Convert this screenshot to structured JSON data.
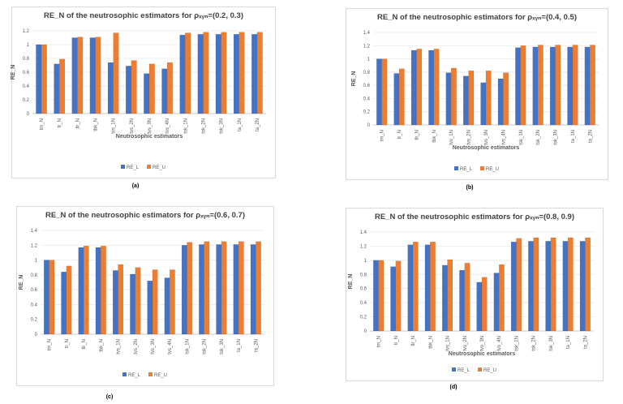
{
  "colors": {
    "lower": "#4472C4",
    "upper": "#ED7D31",
    "grid": "#e6e6e6",
    "frame": "#d9d9d9"
  },
  "chart_data": [
    {
      "type": "bar",
      "panel": "a",
      "caption": "(a)",
      "title": "RE_N of the neutrosophic estimators for ρₓᵧₙ=(0.2, 0.3)",
      "xlabel": "Neutrosophic estimators",
      "ylabel": "RE_N",
      "ylim": [
        0,
        1.2
      ],
      "yticks": [
        "0",
        "0.2",
        "0.4",
        "0.6",
        "0.8",
        "1",
        "1.2"
      ],
      "categories": [
        "tm_N",
        "tr_N",
        "tlr_N",
        "tbk_N",
        "tvs_1N",
        "tvs_2N",
        "tvs_3N",
        "tvs_4N",
        "tsk_1N",
        "tsk_2N",
        "tsk_3N",
        "ta_1N",
        "ta_2N"
      ],
      "series": [
        {
          "name": "RE_L",
          "values": [
            1.0,
            0.72,
            1.1,
            1.1,
            0.74,
            0.69,
            0.58,
            0.65,
            1.14,
            1.15,
            1.15,
            1.15,
            1.15
          ]
        },
        {
          "name": "RE_U",
          "values": [
            1.0,
            0.79,
            1.11,
            1.11,
            1.17,
            0.77,
            0.72,
            0.74,
            1.17,
            1.18,
            1.18,
            1.18,
            1.18
          ]
        }
      ]
    },
    {
      "type": "bar",
      "panel": "b",
      "caption": "(b)",
      "title": "RE_N of the neutrosophic estimators for ρₓᵧₙ=(0.4, 0.5)",
      "xlabel": "Neutrosophic estimators",
      "ylabel": "RE_N",
      "ylim": [
        0,
        1.4
      ],
      "yticks": [
        "0",
        "0.2",
        "0.4",
        "0.6",
        "0.8",
        "1",
        "1.2",
        "1.4"
      ],
      "categories": [
        "tm_N",
        "tr_N",
        "tlr_N",
        "tbk_N",
        "tvs_1N",
        "tvs_2N",
        "tvs_3N",
        "tvs_4N",
        "tsk_1N",
        "tsk_2N",
        "tsk_3N",
        "ta_1N",
        "ta_2N"
      ],
      "series": [
        {
          "name": "RE_L",
          "values": [
            1.0,
            0.78,
            1.13,
            1.13,
            0.79,
            0.74,
            0.64,
            0.7,
            1.17,
            1.18,
            1.18,
            1.18,
            1.18
          ]
        },
        {
          "name": "RE_U",
          "values": [
            1.0,
            0.85,
            1.15,
            1.15,
            0.86,
            0.82,
            0.82,
            0.79,
            1.2,
            1.21,
            1.21,
            1.21,
            1.21
          ]
        }
      ]
    },
    {
      "type": "bar",
      "panel": "c",
      "caption": "(c)",
      "title": "RE_N of the neutrosophic estimators for ρₓᵧₙ=(0.6, 0.7)",
      "xlabel": "",
      "ylabel": "RE_N",
      "ylim": [
        0,
        1.4
      ],
      "yticks": [
        "0",
        "0.2",
        "0.4",
        "0.6",
        "0.8",
        "1",
        "1.2",
        "1.4"
      ],
      "categories": [
        "tm_N",
        "tr_N",
        "tlr_N",
        "tbk_N",
        "tvs_1N",
        "tvs_2N",
        "tvs_3N",
        "tvs_4N",
        "tsk_1N",
        "tsk_2N",
        "tsk_3N",
        "ta_1N",
        "ta_2N"
      ],
      "series": [
        {
          "name": "RE_L",
          "values": [
            1.0,
            0.84,
            1.17,
            1.17,
            0.86,
            0.81,
            0.72,
            0.76,
            1.2,
            1.21,
            1.21,
            1.21,
            1.21
          ]
        },
        {
          "name": "RE_U",
          "values": [
            1.0,
            0.92,
            1.19,
            1.19,
            0.94,
            0.9,
            0.87,
            0.87,
            1.24,
            1.25,
            1.25,
            1.25,
            1.25
          ]
        }
      ]
    },
    {
      "type": "bar",
      "panel": "d",
      "caption": "(d)",
      "title": "RE_N of the neutrosophic estimators for ρₓᵧₙ=(0.8, 0.9)",
      "xlabel": "Neutrosophic estimators",
      "ylabel": "RE_N",
      "ylim": [
        0,
        1.4
      ],
      "yticks": [
        "0",
        "0.2",
        "0.4",
        "0.6",
        "0.8",
        "1",
        "1.2",
        "1.4"
      ],
      "categories": [
        "tm_N",
        "tr_N",
        "tlr_N",
        "tbk_N",
        "tvs_1N",
        "tvs_2N",
        "tvs_3N",
        "tvs_4N",
        "tsk_1N",
        "tsk_2N",
        "tsk_3N",
        "ta_1N",
        "ta_2N"
      ],
      "series": [
        {
          "name": "RE_L",
          "values": [
            1.0,
            0.91,
            1.22,
            1.22,
            0.93,
            0.86,
            0.69,
            0.82,
            1.26,
            1.27,
            1.27,
            1.27,
            1.27
          ]
        },
        {
          "name": "RE_U",
          "values": [
            1.0,
            0.99,
            1.26,
            1.26,
            1.01,
            0.96,
            0.76,
            0.94,
            1.31,
            1.32,
            1.32,
            1.32,
            1.32
          ]
        }
      ]
    }
  ]
}
